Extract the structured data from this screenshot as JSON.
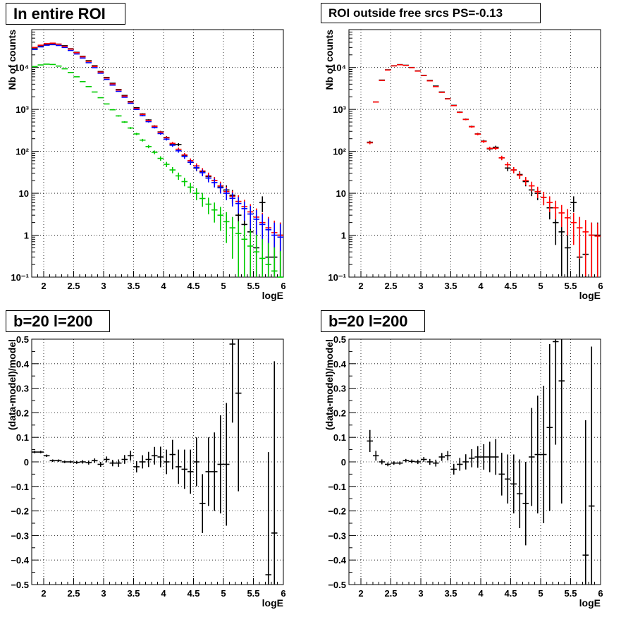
{
  "colors": {
    "data": "#000000",
    "model_total": "#ff0000",
    "model_blue": "#0000ff",
    "model_green": "#00cc00"
  },
  "chart_data": [
    {
      "type": "scatter",
      "title": "In entire ROI",
      "xlabel": "logE",
      "ylabel": "Nb of counts",
      "xlim": [
        1.8,
        6.0
      ],
      "ylim": [
        0.1,
        80000
      ],
      "log_y": true,
      "grid": true,
      "x_ticks": [
        "2",
        "2.5",
        "3",
        "3.5",
        "4",
        "4.5",
        "5",
        "5.5",
        "6"
      ],
      "y_ticks": [
        "10⁻¹",
        "1",
        "10",
        "10²",
        "10³",
        "10⁴"
      ],
      "bin_width": 0.1,
      "x": [
        1.85,
        1.95,
        2.05,
        2.15,
        2.25,
        2.35,
        2.45,
        2.55,
        2.65,
        2.75,
        2.85,
        2.95,
        3.05,
        3.15,
        3.25,
        3.35,
        3.45,
        3.55,
        3.65,
        3.75,
        3.85,
        3.95,
        4.05,
        4.15,
        4.25,
        4.35,
        4.45,
        4.55,
        4.65,
        4.75,
        4.85,
        4.95,
        5.05,
        5.15,
        5.25,
        5.35,
        5.45,
        5.55,
        5.65,
        5.75,
        5.85,
        5.95
      ],
      "series": [
        {
          "name": "",
          "color": "#000000",
          "values": [
            28000,
            33000,
            36000,
            37000,
            36000,
            33000,
            28000,
            23000,
            18500,
            14500,
            11000,
            8000,
            5800,
            4200,
            3000,
            2150,
            1550,
            1100,
            780,
            560,
            400,
            290,
            215,
            150,
            145,
            80,
            55,
            40,
            33,
            25,
            20,
            14,
            12,
            9,
            3,
            1.8,
            1.2,
            0.5,
            6,
            0.3,
            0.3,
            1.0
          ]
        },
        {
          "name": "",
          "color": "#ff0000",
          "values": [
            30000,
            34000,
            37000,
            38000,
            36000,
            32000,
            27500,
            22500,
            18000,
            14000,
            10600,
            7800,
            5600,
            4050,
            2900,
            2080,
            1500,
            1060,
            760,
            545,
            395,
            285,
            210,
            155,
            112,
            82,
            60,
            45,
            34,
            26,
            20,
            15,
            11,
            8.5,
            6.4,
            4.8,
            3.6,
            2.7,
            2.0,
            1.5,
            1.15,
            1.0
          ]
        },
        {
          "name": "",
          "color": "#0000ff",
          "values": [
            27000,
            31000,
            34000,
            35000,
            33500,
            30000,
            25500,
            21000,
            16800,
            13000,
            9900,
            7300,
            5200,
            3800,
            2700,
            1950,
            1400,
            1000,
            710,
            510,
            370,
            265,
            195,
            140,
            103,
            75,
            55,
            41,
            31,
            23,
            18,
            13.5,
            10,
            7.6,
            5.7,
            4.3,
            3.2,
            2.4,
            1.8,
            1.35,
            1.0,
            0.9
          ]
        },
        {
          "name": "",
          "color": "#00cc00",
          "values": [
            10500,
            11500,
            12000,
            11800,
            10800,
            9300,
            7600,
            6000,
            4600,
            3500,
            2600,
            1900,
            1350,
            980,
            700,
            500,
            360,
            260,
            185,
            130,
            95,
            68,
            49,
            36,
            26,
            19,
            14,
            10,
            7.5,
            5.5,
            4,
            3,
            2.1,
            1.5,
            1.1,
            0.8,
            0.55,
            0.4,
            0.28,
            0.2,
            0.14,
            0.1
          ]
        }
      ]
    },
    {
      "type": "scatter",
      "title": "ROI outside free srcs PS=-0.13",
      "xlabel": "logE",
      "ylabel": "Nb of counts",
      "xlim": [
        1.8,
        6.0
      ],
      "ylim": [
        0.1,
        80000
      ],
      "log_y": true,
      "grid": true,
      "x_ticks": [
        "2",
        "2.5",
        "3",
        "3.5",
        "4",
        "4.5",
        "5",
        "5.5",
        "6"
      ],
      "y_ticks": [
        "10⁻¹",
        "1",
        "10",
        "10²",
        "10³",
        "10⁴"
      ],
      "bin_width": 0.1,
      "x": [
        2.15,
        2.25,
        2.35,
        2.45,
        2.55,
        2.65,
        2.75,
        2.85,
        2.95,
        3.05,
        3.15,
        3.25,
        3.35,
        3.45,
        3.55,
        3.65,
        3.75,
        3.85,
        3.95,
        4.05,
        4.15,
        4.25,
        4.35,
        4.45,
        4.55,
        4.65,
        4.75,
        4.85,
        4.95,
        5.05,
        5.15,
        5.25,
        5.35,
        5.45,
        5.55,
        5.65,
        5.75,
        5.85,
        5.95
      ],
      "series": [
        {
          "name": "",
          "color": "#000000",
          "values": [
            165,
            1500,
            5000,
            8800,
            11000,
            11700,
            11300,
            10000,
            8300,
            6500,
            4900,
            3600,
            2600,
            1800,
            1250,
            860,
            580,
            390,
            260,
            175,
            115,
            125,
            70,
            40,
            36,
            28,
            19,
            12,
            10,
            8,
            4.5,
            2,
            1.2,
            0.5,
            6,
            0.3,
            0.35,
            1.0,
            1.0
          ]
        },
        {
          "name": "",
          "color": "#ff0000",
          "values": [
            160,
            1500,
            4900,
            8700,
            10900,
            11600,
            11200,
            9900,
            8200,
            6400,
            4800,
            3500,
            2550,
            1780,
            1230,
            850,
            575,
            385,
            258,
            172,
            118,
            118,
            70,
            48,
            36,
            27,
            20,
            15,
            11,
            8,
            6,
            4.5,
            3.4,
            2.6,
            2,
            1.5,
            1.2,
            1.0,
            0.95
          ]
        }
      ]
    },
    {
      "type": "scatter",
      "title": "b=20 l=200",
      "xlabel": "logE",
      "ylabel": "(data-model)/model",
      "xlim": [
        1.8,
        6.0
      ],
      "ylim": [
        -0.5,
        0.5
      ],
      "grid": true,
      "x_ticks": [
        "2",
        "2.5",
        "3",
        "3.5",
        "4",
        "4.5",
        "5",
        "5.5",
        "6"
      ],
      "y_ticks": [
        "-0.5",
        "-0.4",
        "-0.3",
        "-0.2",
        "-0.1",
        "0",
        "0.1",
        "0.2",
        "0.3",
        "0.4",
        "0.5"
      ],
      "bin_width": 0.1,
      "x": [
        1.85,
        1.95,
        2.05,
        2.15,
        2.25,
        2.35,
        2.45,
        2.55,
        2.65,
        2.75,
        2.85,
        2.95,
        3.05,
        3.15,
        3.25,
        3.35,
        3.45,
        3.55,
        3.65,
        3.75,
        3.85,
        3.95,
        4.05,
        4.15,
        4.25,
        4.35,
        4.45,
        4.55,
        4.65,
        4.75,
        4.85,
        4.95,
        5.05,
        5.15,
        5.25,
        5.35,
        5.45,
        5.55,
        5.65,
        5.75,
        5.85
      ],
      "series": [
        {
          "name": "",
          "color": "#000000",
          "values": [
            0.04,
            0.04,
            0.025,
            0.005,
            0.005,
            0.0,
            0.0,
            -0.002,
            0.0,
            -0.003,
            0.005,
            -0.01,
            0.01,
            -0.005,
            -0.005,
            0.01,
            0.025,
            -0.02,
            0.0,
            0.01,
            0.025,
            0.02,
            0.0,
            0.03,
            -0.02,
            -0.03,
            -0.04,
            0.0,
            -0.17,
            -0.04,
            -0.04,
            -0.01,
            -0.01,
            0.48,
            0.28,
            0.0,
            0.0,
            0.0,
            0.0,
            -0.46,
            -0.29
          ],
          "errors": [
            0.005,
            0.005,
            0.005,
            0.005,
            0.005,
            0.005,
            0.005,
            0.006,
            0.007,
            0.008,
            0.009,
            0.01,
            0.012,
            0.013,
            0.015,
            0.018,
            0.02,
            0.023,
            0.027,
            0.031,
            0.036,
            0.042,
            0.05,
            0.06,
            0.07,
            0.08,
            0.09,
            0.1,
            0.12,
            0.14,
            0.16,
            0.2,
            0.25,
            0.32,
            0.4,
            0.0,
            0.0,
            0.0,
            0.0,
            0.5,
            0.7
          ],
          "show": [
            1,
            1,
            1,
            1,
            1,
            1,
            1,
            1,
            1,
            1,
            1,
            1,
            1,
            1,
            1,
            1,
            1,
            1,
            1,
            1,
            1,
            1,
            1,
            1,
            1,
            1,
            1,
            1,
            1,
            1,
            1,
            1,
            1,
            1,
            1,
            0,
            0,
            0,
            0,
            1,
            1
          ]
        }
      ]
    },
    {
      "type": "scatter",
      "title": "b=20 l=200",
      "xlabel": "logE",
      "ylabel": "(data-model)/model",
      "xlim": [
        1.8,
        6.0
      ],
      "ylim": [
        -0.5,
        0.5
      ],
      "grid": true,
      "x_ticks": [
        "2",
        "2.5",
        "3",
        "3.5",
        "4",
        "4.5",
        "5",
        "5.5",
        "6"
      ],
      "y_ticks": [
        "-0.5",
        "-0.4",
        "-0.3",
        "-0.2",
        "-0.1",
        "0",
        "0.1",
        "0.2",
        "0.3",
        "0.4",
        "0.5"
      ],
      "bin_width": 0.1,
      "x": [
        2.15,
        2.25,
        2.35,
        2.45,
        2.55,
        2.65,
        2.75,
        2.85,
        2.95,
        3.05,
        3.15,
        3.25,
        3.35,
        3.45,
        3.55,
        3.65,
        3.75,
        3.85,
        3.95,
        4.05,
        4.15,
        4.25,
        4.35,
        4.45,
        4.55,
        4.65,
        4.75,
        4.85,
        4.95,
        5.05,
        5.15,
        5.25,
        5.35,
        5.45,
        5.55,
        5.65,
        5.75,
        5.85
      ],
      "series": [
        {
          "name": "",
          "color": "#000000",
          "values": [
            0.085,
            0.025,
            0.0,
            -0.01,
            -0.005,
            -0.005,
            0.005,
            0.002,
            0.0,
            0.01,
            0.0,
            -0.005,
            0.02,
            0.025,
            -0.03,
            -0.01,
            0.0,
            0.015,
            0.02,
            0.02,
            0.02,
            0.02,
            -0.05,
            -0.07,
            -0.09,
            -0.13,
            -0.17,
            0.02,
            0.03,
            0.03,
            0.14,
            0.49,
            0.33,
            0.0,
            0.0,
            0.0,
            -0.38,
            -0.18
          ],
          "errors": [
            0.045,
            0.02,
            0.01,
            0.008,
            0.007,
            0.007,
            0.007,
            0.008,
            0.009,
            0.01,
            0.012,
            0.014,
            0.016,
            0.019,
            0.022,
            0.026,
            0.031,
            0.037,
            0.044,
            0.052,
            0.062,
            0.073,
            0.087,
            0.1,
            0.12,
            0.14,
            0.17,
            0.2,
            0.24,
            0.28,
            0.34,
            0.42,
            0.5,
            0.0,
            0.0,
            0.0,
            0.55,
            0.65
          ],
          "show": [
            1,
            1,
            1,
            1,
            1,
            1,
            1,
            1,
            1,
            1,
            1,
            1,
            1,
            1,
            1,
            1,
            1,
            1,
            1,
            1,
            1,
            1,
            1,
            1,
            1,
            1,
            1,
            1,
            1,
            1,
            1,
            1,
            1,
            0,
            0,
            0,
            1,
            1
          ]
        }
      ]
    }
  ]
}
